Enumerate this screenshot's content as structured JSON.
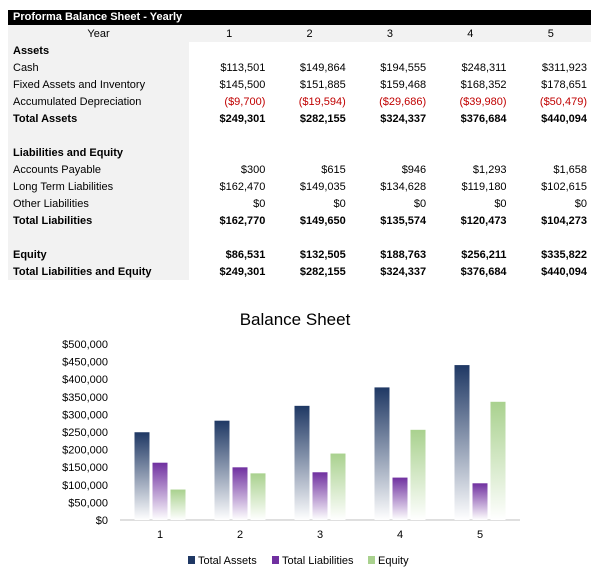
{
  "sheet": {
    "title": "Proforma Balance Sheet - Yearly",
    "header_label": "Year",
    "years": [
      "1",
      "2",
      "3",
      "4",
      "5"
    ],
    "rows": [
      {
        "label": "Assets",
        "values": [],
        "bold": true
      },
      {
        "label": "Cash",
        "values": [
          "$113,501",
          "$149,864",
          "$194,555",
          "$248,311",
          "$311,923"
        ]
      },
      {
        "label": "Fixed Assets and Inventory",
        "values": [
          "$145,500",
          "$151,885",
          "$159,468",
          "$168,352",
          "$178,651"
        ]
      },
      {
        "label": "Accumulated Depreciation",
        "values": [
          "($9,700)",
          "($19,594)",
          "($29,686)",
          "($39,980)",
          "($50,479)"
        ],
        "negative": true
      },
      {
        "label": "Total Assets",
        "values": [
          "$249,301",
          "$282,155",
          "$324,337",
          "$376,684",
          "$440,094"
        ],
        "bold": true
      },
      {
        "label": "",
        "values": []
      },
      {
        "label": "Liabilities and Equity",
        "values": [],
        "bold": true
      },
      {
        "label": "Accounts Payable",
        "values": [
          "$300",
          "$615",
          "$946",
          "$1,293",
          "$1,658"
        ]
      },
      {
        "label": "Long Term Liabilities",
        "values": [
          "$162,470",
          "$149,035",
          "$134,628",
          "$119,180",
          "$102,615"
        ]
      },
      {
        "label": "Other Liabilities",
        "values": [
          "$0",
          "$0",
          "$0",
          "$0",
          "$0"
        ]
      },
      {
        "label": "Total Liabilities",
        "values": [
          "$162,770",
          "$149,650",
          "$135,574",
          "$120,473",
          "$104,273"
        ],
        "bold": true
      },
      {
        "label": "",
        "values": []
      },
      {
        "label": "Equity",
        "values": [
          "$86,531",
          "$132,505",
          "$188,763",
          "$256,211",
          "$335,822"
        ],
        "bold": true
      },
      {
        "label": "Total Liabilities and Equity",
        "values": [
          "$249,301",
          "$282,155",
          "$324,337",
          "$376,684",
          "$440,094"
        ],
        "bold": true
      }
    ]
  },
  "colors": {
    "assets": "#1f3864",
    "liabilities": "#7030a0",
    "equity": "#a9d18e",
    "negative": "#c00000"
  },
  "chart_data": {
    "type": "bar",
    "title": "Balance Sheet",
    "categories": [
      "1",
      "2",
      "3",
      "4",
      "5"
    ],
    "series": [
      {
        "name": "Total Assets",
        "values": [
          249301,
          282155,
          324337,
          376684,
          440094
        ]
      },
      {
        "name": "Total Liabilities",
        "values": [
          162770,
          149650,
          135574,
          120473,
          104273
        ]
      },
      {
        "name": "Equity",
        "values": [
          86531,
          132505,
          188763,
          256211,
          335822
        ]
      }
    ],
    "ylim": [
      0,
      500000
    ],
    "yticks": [
      "$0",
      "$50,000",
      "$100,000",
      "$150,000",
      "$200,000",
      "$250,000",
      "$300,000",
      "$350,000",
      "$400,000",
      "$450,000",
      "$500,000"
    ],
    "grid": false,
    "legend": "bottom"
  }
}
